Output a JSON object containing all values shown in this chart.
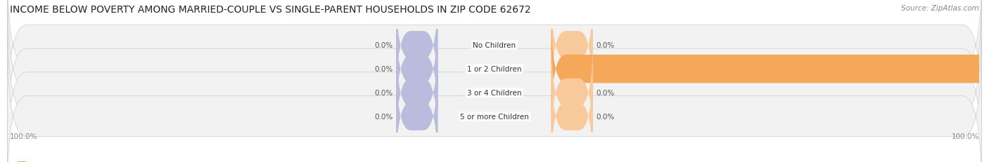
{
  "title": "INCOME BELOW POVERTY AMONG MARRIED-COUPLE VS SINGLE-PARENT HOUSEHOLDS IN ZIP CODE 62672",
  "source": "Source: ZipAtlas.com",
  "categories": [
    "No Children",
    "1 or 2 Children",
    "3 or 4 Children",
    "5 or more Children"
  ],
  "married_values": [
    0.0,
    0.0,
    0.0,
    0.0
  ],
  "single_values": [
    0.0,
    100.0,
    0.0,
    0.0
  ],
  "married_color": "#9999cc",
  "single_color": "#f5a85a",
  "single_color_light": "#f8c99a",
  "married_color_light": "#bbbbdd",
  "bar_bg_color": "#f2f2f2",
  "bar_bg_edge_color": "#cccccc",
  "title_fontsize": 10,
  "source_fontsize": 7.5,
  "label_fontsize": 7.5,
  "category_fontsize": 7.5,
  "legend_fontsize": 8,
  "background_color": "#ffffff"
}
